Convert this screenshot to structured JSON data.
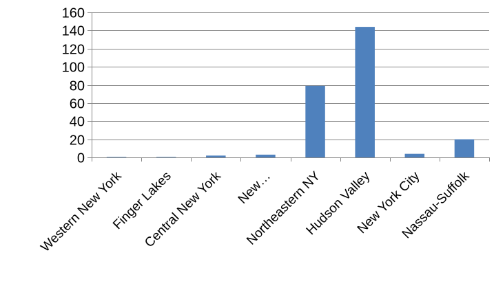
{
  "chart_data": {
    "type": "bar",
    "title": "",
    "xlabel": "",
    "ylabel": "",
    "categories": [
      "Western New York",
      "Finger Lakes",
      "Central New York",
      "New…",
      "Northeastern NY",
      "Hudson Valley",
      "New York City",
      "Nassau-Suffolk"
    ],
    "values": [
      0.5,
      0.5,
      2,
      3,
      79,
      144,
      4,
      20
    ],
    "ylim": [
      0,
      160
    ],
    "yticks": [
      0,
      20,
      40,
      60,
      80,
      100,
      120,
      140,
      160
    ],
    "grid": "horizontal",
    "legend": "none",
    "bar_color": "#4F81BD",
    "grid_color": "#868686",
    "axis_color": "#868686"
  }
}
